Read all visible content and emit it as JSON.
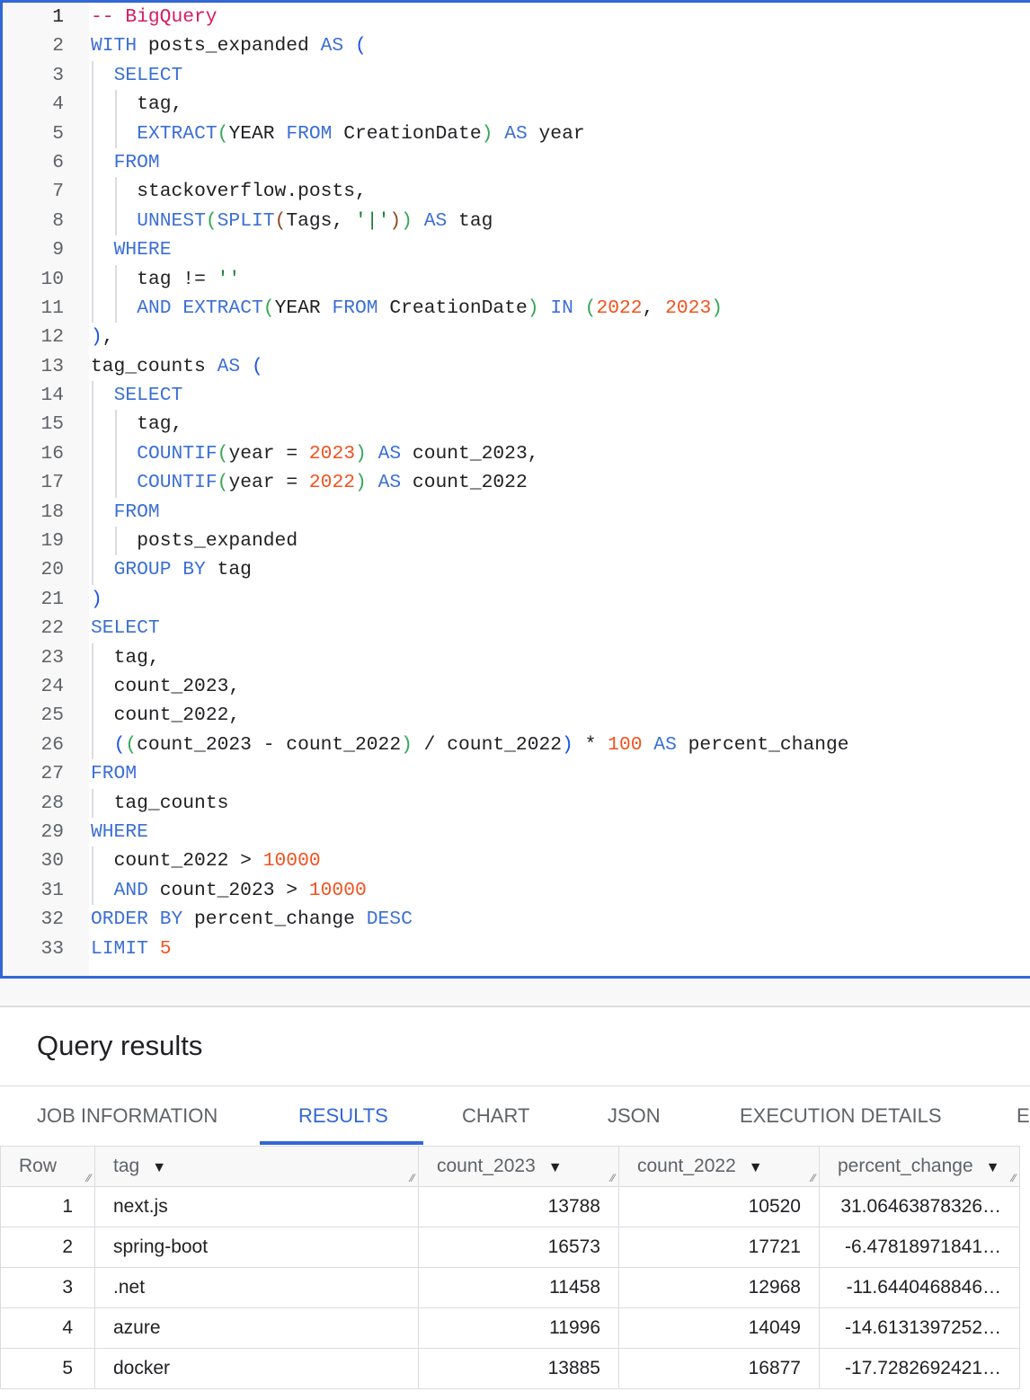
{
  "editor": {
    "active_line": 1,
    "lines": [
      {
        "indent": 0,
        "tokens": [
          [
            "c",
            "-- BigQuery"
          ]
        ]
      },
      {
        "indent": 0,
        "tokens": [
          [
            "k",
            "WITH"
          ],
          [
            "t",
            " posts_expanded "
          ],
          [
            "k",
            "AS"
          ],
          [
            "t",
            " "
          ],
          [
            "p1",
            "("
          ]
        ]
      },
      {
        "indent": 1,
        "tokens": [
          [
            "k",
            "SELECT"
          ]
        ]
      },
      {
        "indent": 2,
        "tokens": [
          [
            "t",
            "tag,"
          ]
        ]
      },
      {
        "indent": 2,
        "tokens": [
          [
            "k",
            "EXTRACT"
          ],
          [
            "p2",
            "("
          ],
          [
            "t",
            "YEAR "
          ],
          [
            "k",
            "FROM"
          ],
          [
            "t",
            " CreationDate"
          ],
          [
            "p2",
            ")"
          ],
          [
            "t",
            " "
          ],
          [
            "k",
            "AS"
          ],
          [
            "t",
            " year"
          ]
        ]
      },
      {
        "indent": 1,
        "tokens": [
          [
            "k",
            "FROM"
          ]
        ]
      },
      {
        "indent": 2,
        "tokens": [
          [
            "t",
            "stackoverflow.posts,"
          ]
        ]
      },
      {
        "indent": 2,
        "tokens": [
          [
            "k",
            "UNNEST"
          ],
          [
            "p2",
            "("
          ],
          [
            "k",
            "SPLIT"
          ],
          [
            "p3",
            "("
          ],
          [
            "t",
            "Tags, "
          ],
          [
            "s",
            "'|'"
          ],
          [
            "p3",
            ")"
          ],
          [
            "p2",
            ")"
          ],
          [
            "t",
            " "
          ],
          [
            "k",
            "AS"
          ],
          [
            "t",
            " tag"
          ]
        ]
      },
      {
        "indent": 1,
        "tokens": [
          [
            "k",
            "WHERE"
          ]
        ]
      },
      {
        "indent": 2,
        "tokens": [
          [
            "t",
            "tag != "
          ],
          [
            "s",
            "''"
          ]
        ]
      },
      {
        "indent": 2,
        "tokens": [
          [
            "k",
            "AND"
          ],
          [
            "t",
            " "
          ],
          [
            "k",
            "EXTRACT"
          ],
          [
            "p2",
            "("
          ],
          [
            "t",
            "YEAR "
          ],
          [
            "k",
            "FROM"
          ],
          [
            "t",
            " CreationDate"
          ],
          [
            "p2",
            ")"
          ],
          [
            "t",
            " "
          ],
          [
            "k",
            "IN"
          ],
          [
            "t",
            " "
          ],
          [
            "p2",
            "("
          ],
          [
            "n",
            "2022"
          ],
          [
            "t",
            ", "
          ],
          [
            "n",
            "2023"
          ],
          [
            "p2",
            ")"
          ]
        ]
      },
      {
        "indent": 0,
        "tokens": [
          [
            "p1",
            ")"
          ],
          [
            "t",
            ","
          ]
        ]
      },
      {
        "indent": 0,
        "tokens": [
          [
            "t",
            "tag_counts "
          ],
          [
            "k",
            "AS"
          ],
          [
            "t",
            " "
          ],
          [
            "p1",
            "("
          ]
        ]
      },
      {
        "indent": 1,
        "tokens": [
          [
            "k",
            "SELECT"
          ]
        ]
      },
      {
        "indent": 2,
        "tokens": [
          [
            "t",
            "tag,"
          ]
        ]
      },
      {
        "indent": 2,
        "tokens": [
          [
            "k",
            "COUNTIF"
          ],
          [
            "p2",
            "("
          ],
          [
            "t",
            "year = "
          ],
          [
            "n",
            "2023"
          ],
          [
            "p2",
            ")"
          ],
          [
            "t",
            " "
          ],
          [
            "k",
            "AS"
          ],
          [
            "t",
            " count_2023,"
          ]
        ]
      },
      {
        "indent": 2,
        "tokens": [
          [
            "k",
            "COUNTIF"
          ],
          [
            "p2",
            "("
          ],
          [
            "t",
            "year = "
          ],
          [
            "n",
            "2022"
          ],
          [
            "p2",
            ")"
          ],
          [
            "t",
            " "
          ],
          [
            "k",
            "AS"
          ],
          [
            "t",
            " count_2022"
          ]
        ]
      },
      {
        "indent": 1,
        "tokens": [
          [
            "k",
            "FROM"
          ]
        ]
      },
      {
        "indent": 2,
        "tokens": [
          [
            "t",
            "posts_expanded"
          ]
        ]
      },
      {
        "indent": 1,
        "tokens": [
          [
            "k",
            "GROUP"
          ],
          [
            "t",
            " "
          ],
          [
            "k",
            "BY"
          ],
          [
            "t",
            " tag"
          ]
        ]
      },
      {
        "indent": 0,
        "tokens": [
          [
            "p1",
            ")"
          ]
        ]
      },
      {
        "indent": 0,
        "tokens": [
          [
            "k",
            "SELECT"
          ]
        ]
      },
      {
        "indent": 1,
        "tokens": [
          [
            "t",
            "tag,"
          ]
        ]
      },
      {
        "indent": 1,
        "tokens": [
          [
            "t",
            "count_2023,"
          ]
        ]
      },
      {
        "indent": 1,
        "tokens": [
          [
            "t",
            "count_2022,"
          ]
        ]
      },
      {
        "indent": 1,
        "tokens": [
          [
            "p1",
            "("
          ],
          [
            "p2",
            "("
          ],
          [
            "t",
            "count_2023 - count_2022"
          ],
          [
            "p2",
            ")"
          ],
          [
            "t",
            " / count_2022"
          ],
          [
            "p1",
            ")"
          ],
          [
            "t",
            " * "
          ],
          [
            "n",
            "100"
          ],
          [
            "t",
            " "
          ],
          [
            "k",
            "AS"
          ],
          [
            "t",
            " percent_change"
          ]
        ]
      },
      {
        "indent": 0,
        "tokens": [
          [
            "k",
            "FROM"
          ]
        ]
      },
      {
        "indent": 1,
        "tokens": [
          [
            "t",
            "tag_counts"
          ]
        ]
      },
      {
        "indent": 0,
        "tokens": [
          [
            "k",
            "WHERE"
          ]
        ]
      },
      {
        "indent": 1,
        "tokens": [
          [
            "t",
            "count_2022 > "
          ],
          [
            "n",
            "10000"
          ]
        ]
      },
      {
        "indent": 1,
        "tokens": [
          [
            "k",
            "AND"
          ],
          [
            "t",
            " count_2023 > "
          ],
          [
            "n",
            "10000"
          ]
        ]
      },
      {
        "indent": 0,
        "tokens": [
          [
            "k",
            "ORDER"
          ],
          [
            "t",
            " "
          ],
          [
            "k",
            "BY"
          ],
          [
            "t",
            " percent_change "
          ],
          [
            "k",
            "DESC"
          ]
        ]
      },
      {
        "indent": 0,
        "tokens": [
          [
            "k",
            "LIMIT"
          ],
          [
            "t",
            " "
          ],
          [
            "n",
            "5"
          ]
        ]
      }
    ]
  },
  "results": {
    "title": "Query results",
    "tabs": [
      "JOB INFORMATION",
      "RESULTS",
      "CHART",
      "JSON",
      "EXECUTION DETAILS",
      "EXECUTION GRAPH"
    ],
    "active_tab": "RESULTS",
    "columns": [
      "Row",
      "tag",
      "count_2023",
      "count_2022",
      "percent_change"
    ],
    "sort_icon": "dropdown-arrow-icon",
    "rows": [
      [
        "1",
        "next.js",
        "13788",
        "10520",
        "31.06463878326…"
      ],
      [
        "2",
        "spring-boot",
        "16573",
        "17721",
        "-6.47818971841…"
      ],
      [
        "3",
        ".net",
        "11458",
        "12968",
        "-11.6440468846…"
      ],
      [
        "4",
        "azure",
        "11996",
        "14049",
        "-14.6131397252…"
      ],
      [
        "5",
        "docker",
        "13885",
        "16877",
        "-17.7282692421…"
      ]
    ]
  },
  "colors": {
    "accent": "#3367d6",
    "keyword": "#3b6fd6",
    "comment": "#d81b60",
    "number": "#f4511e",
    "string": "#188038"
  }
}
